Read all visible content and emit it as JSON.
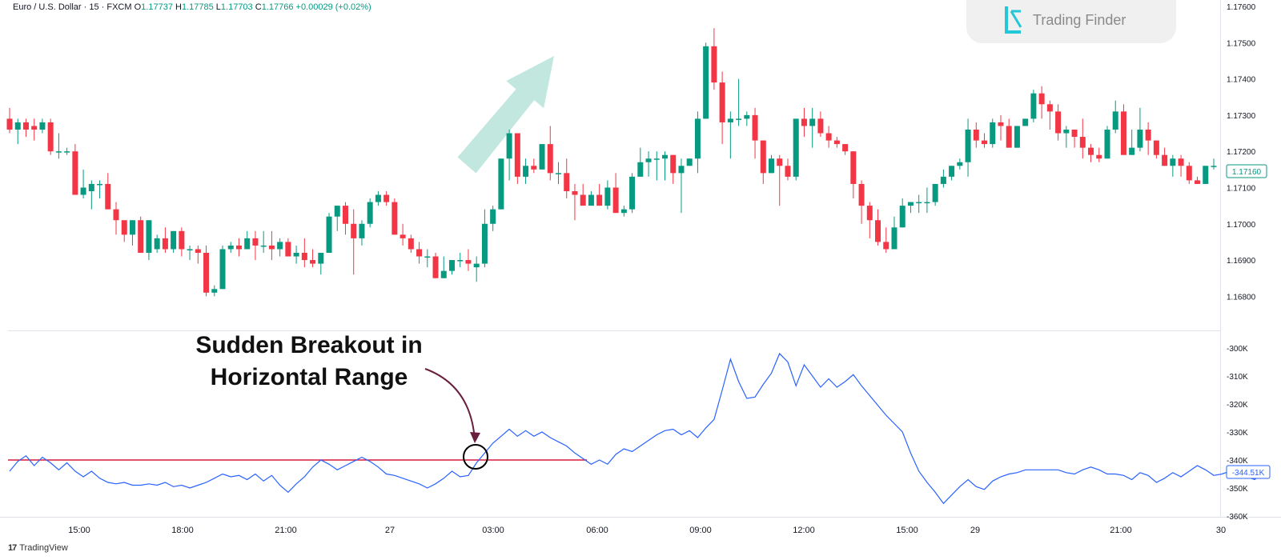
{
  "header": {
    "symbol": "Euro / U.S. Dollar · 15 · FXCM",
    "o_label": "O",
    "o_value": "1.17737",
    "h_label": "H",
    "h_value": "1.17785",
    "l_label": "L",
    "l_value": "1.17703",
    "c_label": "C",
    "c_value": "1.17766",
    "change": "+0.00029 (+0.02%)"
  },
  "watermark": {
    "name": "Trading Finder"
  },
  "annotation": {
    "line1": "Sudden Breakout in",
    "line2": "Horizontal Range"
  },
  "footer": {
    "brand": "TradingView"
  },
  "colors": {
    "up": "#089981",
    "down": "#f23645",
    "indicator": "#2962ff",
    "range_line": "#d81b3c",
    "arrow": "#b6e3d8",
    "annotation_arrow": "#6a1f3f"
  },
  "chart_data": [
    {
      "type": "candlestick",
      "ylim": [
        1.1675,
        1.176
      ],
      "ticks": [
        "1.17600",
        "1.17500",
        "1.17400",
        "1.17300",
        "1.17200",
        "1.17100",
        "1.17000",
        "1.16900",
        "1.16800"
      ],
      "last_price_label": "1.17160",
      "candles": [
        [
          1.1729,
          1.1732,
          1.1725,
          1.1726
        ],
        [
          1.1726,
          1.1729,
          1.1722,
          1.1728
        ],
        [
          1.1728,
          1.1729,
          1.1724,
          1.1726
        ],
        [
          1.1727,
          1.1729,
          1.1723,
          1.1726
        ],
        [
          1.1726,
          1.1729,
          1.1725,
          1.1728
        ],
        [
          1.1728,
          1.1729,
          1.1719,
          1.172
        ],
        [
          1.172,
          1.1725,
          1.1718,
          1.172
        ],
        [
          1.172,
          1.1721,
          1.1719,
          1.172
        ],
        [
          1.172,
          1.1722,
          1.1708,
          1.1708
        ],
        [
          1.1708,
          1.1715,
          1.1707,
          1.171
        ],
        [
          1.1709,
          1.1712,
          1.1704,
          1.1711
        ],
        [
          1.1711,
          1.1712,
          1.1707,
          1.1711
        ],
        [
          1.1711,
          1.1714,
          1.1704,
          1.1704
        ],
        [
          1.1704,
          1.1706,
          1.1697,
          1.1701
        ],
        [
          1.1701,
          1.1701,
          1.1695,
          1.1697
        ],
        [
          1.1697,
          1.1701,
          1.1694,
          1.1701
        ],
        [
          1.1701,
          1.1702,
          1.1692,
          1.1692
        ],
        [
          1.1692,
          1.1701,
          1.169,
          1.1701
        ],
        [
          1.1693,
          1.1697,
          1.1692,
          1.1696
        ],
        [
          1.1696,
          1.1699,
          1.1692,
          1.1693
        ],
        [
          1.1693,
          1.1698,
          1.1692,
          1.1698
        ],
        [
          1.1698,
          1.1699,
          1.1691,
          1.1693
        ],
        [
          1.1693,
          1.1694,
          1.169,
          1.1693
        ],
        [
          1.1693,
          1.1694,
          1.1689,
          1.1692
        ],
        [
          1.1692,
          1.1694,
          1.168,
          1.1681
        ],
        [
          1.1681,
          1.1683,
          1.168,
          1.1682
        ],
        [
          1.1682,
          1.1694,
          1.1682,
          1.1693
        ],
        [
          1.1693,
          1.1695,
          1.1692,
          1.1694
        ],
        [
          1.1694,
          1.1696,
          1.1691,
          1.1693
        ],
        [
          1.1693,
          1.1698,
          1.1693,
          1.1696
        ],
        [
          1.1696,
          1.1698,
          1.169,
          1.1694
        ],
        [
          1.1694,
          1.1698,
          1.1692,
          1.1694
        ],
        [
          1.1694,
          1.1698,
          1.169,
          1.1693
        ],
        [
          1.1693,
          1.1696,
          1.1691,
          1.1695
        ],
        [
          1.1695,
          1.1696,
          1.1691,
          1.1691
        ],
        [
          1.1691,
          1.1694,
          1.1689,
          1.1692
        ],
        [
          1.1692,
          1.1696,
          1.1688,
          1.169
        ],
        [
          1.169,
          1.1693,
          1.1688,
          1.1689
        ],
        [
          1.1689,
          1.1692,
          1.1686,
          1.1692
        ],
        [
          1.1692,
          1.1703,
          1.1692,
          1.1702
        ],
        [
          1.1702,
          1.1705,
          1.1698,
          1.1705
        ],
        [
          1.1705,
          1.1706,
          1.1697,
          1.17
        ],
        [
          1.17,
          1.1704,
          1.1686,
          1.1696
        ],
        [
          1.1696,
          1.1701,
          1.1694,
          1.17
        ],
        [
          1.17,
          1.1707,
          1.1699,
          1.1706
        ],
        [
          1.1706,
          1.1709,
          1.1705,
          1.1708
        ],
        [
          1.1708,
          1.1709,
          1.1705,
          1.1706
        ],
        [
          1.1706,
          1.1707,
          1.1697,
          1.1697
        ],
        [
          1.1697,
          1.17,
          1.1694,
          1.1696
        ],
        [
          1.1696,
          1.1697,
          1.1692,
          1.1693
        ],
        [
          1.1693,
          1.1695,
          1.1689,
          1.1691
        ],
        [
          1.1691,
          1.1693,
          1.1688,
          1.1691
        ],
        [
          1.1691,
          1.1692,
          1.1685,
          1.1685
        ],
        [
          1.1685,
          1.1691,
          1.1685,
          1.1687
        ],
        [
          1.1687,
          1.169,
          1.1686,
          1.169
        ],
        [
          1.169,
          1.1692,
          1.1688,
          1.169
        ],
        [
          1.169,
          1.1693,
          1.1687,
          1.1689
        ],
        [
          1.1688,
          1.1691,
          1.1684,
          1.1689
        ],
        [
          1.1689,
          1.1704,
          1.1688,
          1.17
        ],
        [
          1.17,
          1.1705,
          1.1698,
          1.1704
        ],
        [
          1.1704,
          1.1718,
          1.1704,
          1.1718
        ],
        [
          1.1718,
          1.1726,
          1.1712,
          1.1725
        ],
        [
          1.1725,
          1.1725,
          1.1711,
          1.1713
        ],
        [
          1.1713,
          1.1718,
          1.1711,
          1.1716
        ],
        [
          1.1716,
          1.1718,
          1.1714,
          1.1715
        ],
        [
          1.1715,
          1.1722,
          1.1715,
          1.1722
        ],
        [
          1.1722,
          1.1727,
          1.1712,
          1.1714
        ],
        [
          1.1714,
          1.1717,
          1.1711,
          1.1714
        ],
        [
          1.1714,
          1.1718,
          1.1707,
          1.1709
        ],
        [
          1.1709,
          1.1711,
          1.1701,
          1.1708
        ],
        [
          1.1708,
          1.1711,
          1.1705,
          1.1705
        ],
        [
          1.1705,
          1.1709,
          1.1705,
          1.1708
        ],
        [
          1.1708,
          1.1711,
          1.1705,
          1.1705
        ],
        [
          1.1705,
          1.1712,
          1.1704,
          1.171
        ],
        [
          1.171,
          1.1714,
          1.1703,
          1.1703
        ],
        [
          1.1703,
          1.1705,
          1.1702,
          1.1704
        ],
        [
          1.1704,
          1.1714,
          1.1703,
          1.1713
        ],
        [
          1.1713,
          1.1721,
          1.1713,
          1.1717
        ],
        [
          1.1717,
          1.172,
          1.1713,
          1.1718
        ],
        [
          1.1718,
          1.172,
          1.1712,
          1.1718
        ],
        [
          1.1718,
          1.172,
          1.1712,
          1.1719
        ],
        [
          1.1719,
          1.1719,
          1.1711,
          1.1714
        ],
        [
          1.1714,
          1.1718,
          1.1703,
          1.1716
        ],
        [
          1.1716,
          1.1718,
          1.1716,
          1.1718
        ],
        [
          1.1718,
          1.1731,
          1.1714,
          1.1729
        ],
        [
          1.1729,
          1.175,
          1.1729,
          1.1749
        ],
        [
          1.1749,
          1.1754,
          1.1737,
          1.1739
        ],
        [
          1.1739,
          1.1742,
          1.1722,
          1.1728
        ],
        [
          1.1728,
          1.1731,
          1.1718,
          1.1729
        ],
        [
          1.1729,
          1.174,
          1.1727,
          1.1729
        ],
        [
          1.1729,
          1.1731,
          1.1727,
          1.173
        ],
        [
          1.173,
          1.1732,
          1.1718,
          1.1723
        ],
        [
          1.1723,
          1.1723,
          1.1711,
          1.1714
        ],
        [
          1.1714,
          1.1719,
          1.1714,
          1.1718
        ],
        [
          1.1718,
          1.1719,
          1.1705,
          1.1716
        ],
        [
          1.1716,
          1.1718,
          1.1712,
          1.1713
        ],
        [
          1.1713,
          1.1729,
          1.1712,
          1.1729
        ],
        [
          1.1729,
          1.1732,
          1.1724,
          1.1727
        ],
        [
          1.1727,
          1.1732,
          1.1721,
          1.1729
        ],
        [
          1.1729,
          1.1731,
          1.1724,
          1.1725
        ],
        [
          1.1725,
          1.1727,
          1.1721,
          1.1723
        ],
        [
          1.1723,
          1.1724,
          1.1721,
          1.1722
        ],
        [
          1.1722,
          1.1722,
          1.1719,
          1.172
        ],
        [
          1.172,
          1.172,
          1.1707,
          1.1711
        ],
        [
          1.1711,
          1.1712,
          1.17,
          1.1705
        ],
        [
          1.1705,
          1.1706,
          1.1696,
          1.1701
        ],
        [
          1.1701,
          1.1704,
          1.1694,
          1.1695
        ],
        [
          1.1695,
          1.1699,
          1.1692,
          1.1693
        ],
        [
          1.1693,
          1.1702,
          1.1693,
          1.1699
        ],
        [
          1.1699,
          1.1707,
          1.1699,
          1.1705
        ],
        [
          1.1705,
          1.1706,
          1.1703,
          1.1706
        ],
        [
          1.1706,
          1.1708,
          1.1703,
          1.1706
        ],
        [
          1.1706,
          1.171,
          1.1703,
          1.1706
        ],
        [
          1.1706,
          1.1711,
          1.1705,
          1.1711
        ],
        [
          1.1711,
          1.1715,
          1.171,
          1.1713
        ],
        [
          1.1713,
          1.1716,
          1.1712,
          1.1716
        ],
        [
          1.1716,
          1.1718,
          1.1715,
          1.1717
        ],
        [
          1.1717,
          1.1729,
          1.1713,
          1.1726
        ],
        [
          1.1726,
          1.1728,
          1.1721,
          1.1723
        ],
        [
          1.1723,
          1.1725,
          1.1721,
          1.1722
        ],
        [
          1.1722,
          1.1729,
          1.1721,
          1.1728
        ],
        [
          1.1728,
          1.173,
          1.1723,
          1.1727
        ],
        [
          1.1727,
          1.1729,
          1.1721,
          1.1721
        ],
        [
          1.1721,
          1.1727,
          1.1721,
          1.1727
        ],
        [
          1.1727,
          1.1729,
          1.1727,
          1.1729
        ],
        [
          1.1729,
          1.1737,
          1.1728,
          1.1736
        ],
        [
          1.1736,
          1.1738,
          1.1729,
          1.1733
        ],
        [
          1.1733,
          1.1734,
          1.1726,
          1.1731
        ],
        [
          1.1731,
          1.1733,
          1.1723,
          1.1725
        ],
        [
          1.1725,
          1.1727,
          1.1721,
          1.1726
        ],
        [
          1.1726,
          1.1726,
          1.1721,
          1.1724
        ],
        [
          1.1724,
          1.1729,
          1.1718,
          1.1721
        ],
        [
          1.1721,
          1.1722,
          1.1717,
          1.1719
        ],
        [
          1.1719,
          1.1721,
          1.1717,
          1.1718
        ],
        [
          1.1718,
          1.1727,
          1.1718,
          1.1726
        ],
        [
          1.1726,
          1.1734,
          1.1725,
          1.1731
        ],
        [
          1.1731,
          1.1733,
          1.1719,
          1.1719
        ],
        [
          1.1719,
          1.1726,
          1.1719,
          1.1721
        ],
        [
          1.1721,
          1.1732,
          1.172,
          1.1726
        ],
        [
          1.1726,
          1.1728,
          1.1719,
          1.1723
        ],
        [
          1.1723,
          1.1723,
          1.1718,
          1.1719
        ],
        [
          1.1719,
          1.1721,
          1.1716,
          1.1716
        ],
        [
          1.1716,
          1.1719,
          1.1713,
          1.1718
        ],
        [
          1.1718,
          1.1719,
          1.1713,
          1.1716
        ],
        [
          1.1716,
          1.1717,
          1.1711,
          1.1712
        ],
        [
          1.1712,
          1.1713,
          1.1711,
          1.1711
        ],
        [
          1.1711,
          1.1716,
          1.1711,
          1.1716
        ],
        [
          1.1716,
          1.1718,
          1.1715,
          1.1716
        ]
      ]
    },
    {
      "type": "line",
      "ylim": [
        -360000,
        -298000
      ],
      "ticks": [
        "-300K",
        "-310K",
        "-320K",
        "-330K",
        "-340K",
        "-350K",
        "-360K"
      ],
      "last_value_label": "-344.51K",
      "horizontal_line": -340000,
      "values": [
        -344000,
        -340500,
        -338500,
        -342000,
        -339000,
        -341000,
        -343500,
        -341000,
        -344000,
        -346000,
        -344000,
        -346500,
        -348000,
        -348500,
        -348000,
        -349000,
        -349000,
        -348500,
        -349000,
        -348000,
        -349500,
        -349000,
        -350000,
        -349000,
        -348000,
        -346500,
        -345000,
        -346000,
        -345500,
        -347000,
        -345000,
        -347500,
        -345500,
        -349000,
        -351500,
        -348500,
        -346000,
        -342500,
        -340000,
        -341500,
        -343500,
        -342000,
        -340500,
        -339000,
        -340500,
        -342500,
        -345000,
        -345500,
        -346500,
        -347500,
        -348500,
        -350000,
        -348500,
        -346500,
        -344000,
        -346000,
        -345500,
        -341000,
        -337500,
        -334000,
        -331500,
        -329000,
        -331500,
        -329500,
        -331500,
        -330000,
        -332000,
        -333500,
        -335000,
        -337500,
        -339500,
        -341500,
        -340000,
        -341500,
        -338000,
        -336000,
        -337000,
        -335000,
        -333000,
        -331000,
        -329500,
        -329000,
        -331000,
        -329500,
        -332000,
        -328500,
        -325500,
        -315000,
        -304000,
        -312000,
        -318000,
        -317500,
        -313000,
        -309000,
        -302000,
        -305000,
        -313500,
        -306000,
        -310000,
        -314000,
        -311000,
        -314000,
        -312000,
        -309500,
        -313500,
        -317000,
        -320500,
        -324000,
        -327000,
        -330000,
        -337500,
        -344000,
        -348000,
        -351500,
        -355500,
        -352500,
        -349500,
        -347000,
        -349500,
        -350500,
        -347500,
        -346000,
        -345000,
        -344500,
        -343500,
        -343500,
        -343500,
        -343500,
        -343500,
        -344500,
        -345000,
        -343500,
        -342500,
        -343500,
        -345000,
        -345000,
        -345500,
        -347000,
        -344500,
        -345500,
        -348000,
        -346500,
        -344500,
        -346000,
        -344000,
        -342000,
        -343500,
        -345500,
        -345000,
        -344000,
        -345000,
        -346000,
        -347000,
        -344500
      ]
    }
  ],
  "x_axis": {
    "labels": [
      "15:00",
      "18:00",
      "21:00",
      "27",
      "03:00",
      "06:00",
      "09:00",
      "12:00",
      "15:00",
      "29",
      "21:00",
      "30"
    ]
  }
}
